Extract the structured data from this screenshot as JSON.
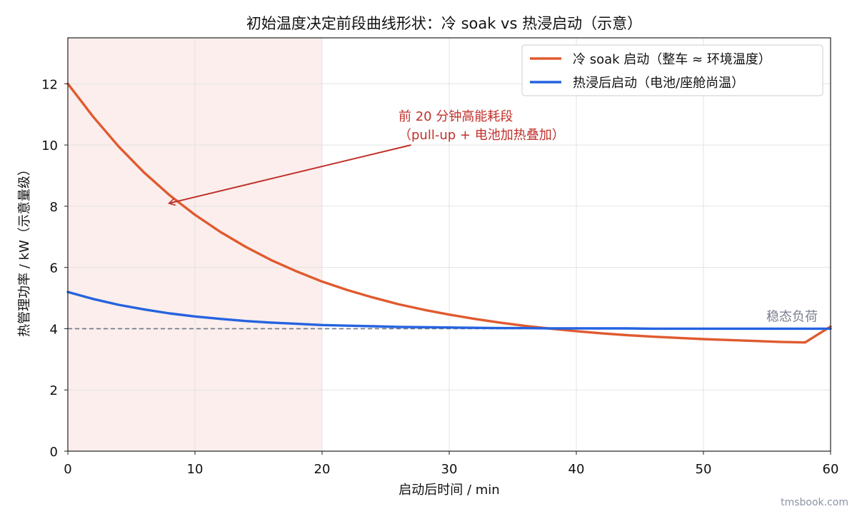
{
  "watermark": "tmsbook.com",
  "chart_data": {
    "type": "line",
    "title": "初始温度决定前段曲线形状：冷 soak vs 热浸启动（示意）",
    "xlabel": "启动后时间 / min",
    "ylabel": "热管理功率 / kW（示意量级）",
    "xlim": [
      0,
      60
    ],
    "ylim": [
      0,
      13.5
    ],
    "x_ticks": [
      0,
      10,
      20,
      30,
      40,
      50,
      60
    ],
    "y_ticks": [
      0,
      2,
      4,
      6,
      8,
      10,
      12
    ],
    "grid": true,
    "legend_position": "top-right",
    "x": [
      0,
      2,
      4,
      6,
      8,
      10,
      12,
      14,
      16,
      18,
      20,
      22,
      24,
      26,
      28,
      30,
      32,
      34,
      36,
      38,
      40,
      42,
      44,
      46,
      48,
      50,
      52,
      54,
      56,
      58,
      60
    ],
    "series": [
      {
        "name": "冷 soak 启动（整车 ≈ 环境温度）",
        "color": "#e05a2f",
        "values": [
          12.0,
          10.92,
          9.95,
          9.1,
          8.36,
          7.72,
          7.16,
          6.67,
          6.24,
          5.87,
          5.54,
          5.26,
          5.02,
          4.8,
          4.62,
          4.46,
          4.32,
          4.2,
          4.09,
          4.0,
          3.92,
          3.85,
          3.79,
          3.74,
          3.7,
          3.66,
          3.63,
          3.6,
          3.57,
          3.55,
          4.07
        ]
      },
      {
        "name": "热浸后启动（电池/座舱尚温）",
        "color": "#2563e0",
        "values": [
          5.2,
          4.97,
          4.78,
          4.63,
          4.5,
          4.4,
          4.32,
          4.25,
          4.2,
          4.16,
          4.12,
          4.1,
          4.08,
          4.06,
          4.05,
          4.04,
          4.03,
          4.02,
          4.02,
          4.01,
          4.01,
          4.01,
          4.01,
          4.0,
          4.0,
          4.0,
          4.0,
          4.0,
          4.0,
          4.0,
          4.0
        ]
      }
    ],
    "steady_state": {
      "value": 4,
      "label": "稳态负荷",
      "color": "#707684"
    },
    "shaded_region": {
      "x_start": 0,
      "x_end": 20,
      "color": "#fbeeec"
    },
    "annotation": {
      "lines": [
        "前 20 分钟高能耗段",
        "（pull-up + 电池加热叠加）"
      ],
      "color": "#c0302a",
      "arrow_target": {
        "x": 8,
        "y": 8.1
      },
      "arrow_from": {
        "x": 27,
        "y": 10.0
      }
    }
  }
}
